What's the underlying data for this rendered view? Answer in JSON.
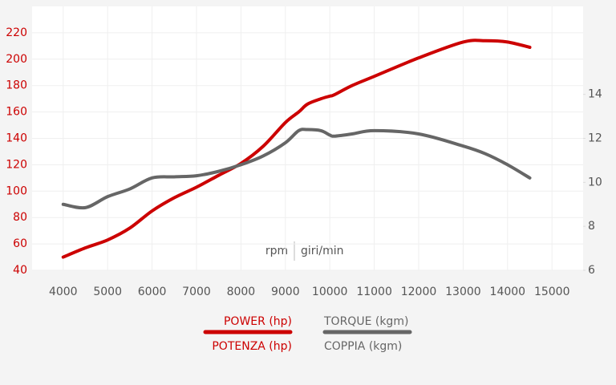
{
  "chart_data": {
    "type": "line",
    "annotation": [
      "rpm",
      "giri/min"
    ],
    "x": [
      4000,
      4500,
      5000,
      5500,
      6000,
      6500,
      7000,
      7500,
      8000,
      8500,
      9000,
      9300,
      9500,
      9800,
      10000,
      10100,
      10500,
      11000,
      12000,
      13000,
      13500,
      14000,
      14500
    ],
    "series": [
      {
        "name": "POWER (hp)",
        "name_alt": "POTENZA (hp)",
        "color": "#cc0000",
        "values": [
          50,
          57,
          63,
          72,
          85,
          95,
          103,
          112,
          121,
          134,
          152,
          160,
          166,
          170,
          172,
          173,
          180,
          187,
          201,
          213,
          214,
          213,
          209
        ]
      },
      {
        "name": "TORQUE (kgm)",
        "name_alt": "COPPIA (kgm)",
        "color": "#666666",
        "axis": "y2",
        "values": [
          9.0,
          8.85,
          9.35,
          9.7,
          10.2,
          10.25,
          10.3,
          10.5,
          10.8,
          11.2,
          11.8,
          12.35,
          12.4,
          12.35,
          12.15,
          12.1,
          12.2,
          12.35,
          12.2,
          11.65,
          11.3,
          10.8,
          10.2
        ]
      }
    ],
    "xlim": [
      3300,
      15700
    ],
    "xticks": [
      4000,
      5000,
      6000,
      7000,
      8000,
      9000,
      10000,
      11000,
      12000,
      13000,
      14000,
      15000
    ],
    "ylim": [
      40,
      240
    ],
    "yticks": [
      40,
      60,
      80,
      100,
      120,
      140,
      160,
      180,
      200,
      220
    ],
    "y2lim": [
      6,
      18
    ],
    "y2ticks": [
      6,
      8,
      10,
      12,
      14
    ],
    "grid": true
  }
}
